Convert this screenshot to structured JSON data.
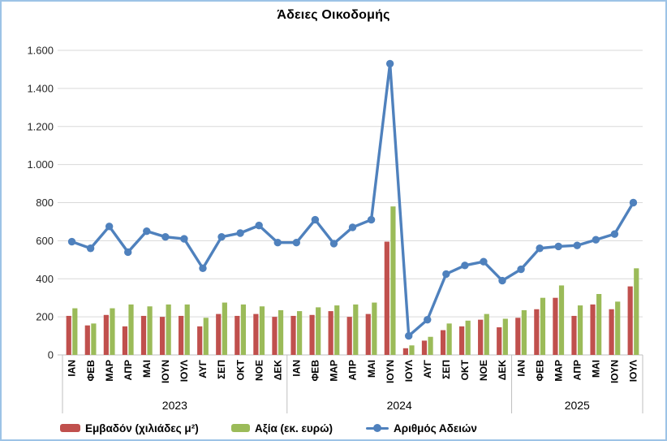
{
  "chart_data": {
    "type": "bar+line",
    "title": "Άδειες Οικοδομής",
    "categories": [
      "ΙΑΝ",
      "ΦΕΒ",
      "ΜΑΡ",
      "ΑΠΡ",
      "ΜΑΙ",
      "ΙΟΥΝ",
      "ΙΟΥΛ",
      "ΑΥΓ",
      "ΣΕΠ",
      "ΟΚΤ",
      "ΝΟΕ",
      "ΔΕΚ",
      "ΙΑΝ",
      "ΦΕΒ",
      "ΜΑΡ",
      "ΑΠΡ",
      "ΜΑΙ",
      "ΙΟΥΝ",
      "ΙΟΥΛ",
      "ΑΥΓ",
      "ΣΕΠ",
      "ΟΚΤ",
      "ΝΟΕ",
      "ΔΕΚ",
      "ΙΑΝ",
      "ΦΕΒ",
      "ΜΑΡ",
      "ΑΠΡ",
      "ΜΑΙ",
      "ΙΟΥΝ",
      "ΙΟΥΛ"
    ],
    "year_groups": [
      {
        "label": "2023",
        "count": 12
      },
      {
        "label": "2024",
        "count": 12
      },
      {
        "label": "2025",
        "count": 7
      }
    ],
    "series": [
      {
        "name": "Εμβαδόν (χιλιάδες μ²)",
        "type": "bar",
        "color": "#C0504D",
        "values": [
          205,
          155,
          210,
          150,
          205,
          200,
          205,
          150,
          215,
          205,
          215,
          200,
          205,
          210,
          230,
          200,
          215,
          595,
          35,
          75,
          130,
          150,
          185,
          145,
          195,
          240,
          300,
          205,
          265,
          240,
          360
        ]
      },
      {
        "name": "Αξία (εκ. ευρώ)",
        "type": "bar",
        "color": "#9BBB59",
        "values": [
          245,
          165,
          245,
          265,
          255,
          265,
          265,
          195,
          275,
          265,
          255,
          235,
          230,
          250,
          260,
          265,
          275,
          780,
          50,
          95,
          165,
          180,
          215,
          190,
          235,
          300,
          365,
          260,
          320,
          280,
          455
        ]
      },
      {
        "name": "Αριθμός Αδειών",
        "type": "line",
        "color": "#4F81BD",
        "values": [
          595,
          560,
          675,
          540,
          650,
          620,
          610,
          455,
          620,
          640,
          680,
          590,
          590,
          710,
          585,
          670,
          710,
          1530,
          100,
          185,
          425,
          470,
          490,
          390,
          450,
          560,
          570,
          575,
          605,
          635,
          800
        ]
      }
    ],
    "ylim": [
      0,
      1600
    ],
    "ytick_interval": 200,
    "ytick_labels": [
      "0",
      "200",
      "400",
      "600",
      "800",
      "1.000",
      "1.200",
      "1.400",
      "1.600"
    ],
    "grid": true,
    "legend_position": "bottom"
  },
  "style": {
    "grid_color": "#D9D9D9",
    "axis_color": "#BFBFBF",
    "text_color": "#262626",
    "border_color": "#9DC3E6"
  }
}
